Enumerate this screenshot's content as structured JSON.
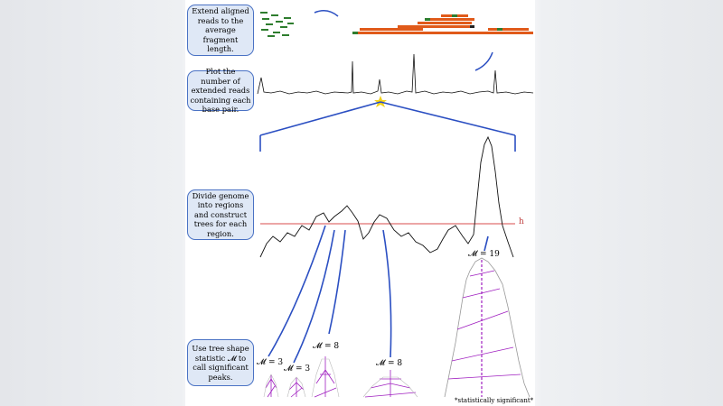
{
  "steps": [
    {
      "label": "Extend aligned reads to the average fragment length."
    },
    {
      "label": "Plot the number of extended reads containing each base pair."
    },
    {
      "label": "Divide genome into regions and construct trees for each region."
    },
    {
      "label": "Use tree shape statistic 𝓜 to call significant peaks."
    }
  ],
  "threshold_label": "h",
  "trees": [
    {
      "label": "𝓜 = 19"
    },
    {
      "label": "𝓜 = 3"
    },
    {
      "label": "𝓜 = 3"
    },
    {
      "label": "𝓜 = 8"
    },
    {
      "label": "𝓜 = 8"
    }
  ],
  "footnote": "*statistically significant*"
}
